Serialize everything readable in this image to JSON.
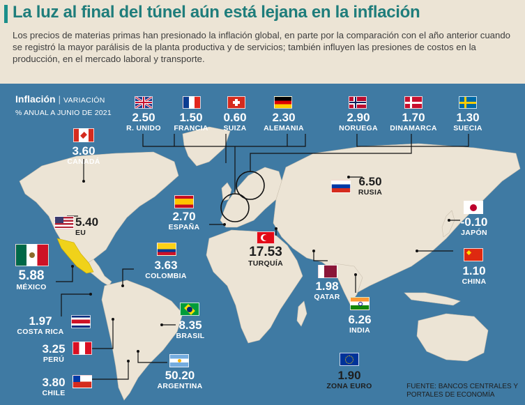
{
  "title": "La luz al final del túnel aún está lejana en la inflación",
  "intro": "Los precios de materias primas han presionado la inflación global, en parte por la comparación con el año anterior cuando se registró la mayor parálisis de la planta productiva y de servicios; también influyen las presiones de costos en la producción, en el mercado laboral y transporte.",
  "subtitle": {
    "main": "Inflación",
    "sep": "|",
    "var": "VARIACIÓN",
    "line2": "% ANUAL A JUNIO DE 2021"
  },
  "countries": {
    "uk": {
      "value": "2.50",
      "name": "R. UNIDO",
      "flag": "uk-flag-icon"
    },
    "france": {
      "value": "1.50",
      "name": "FRANCIA",
      "flag": "france-flag-icon"
    },
    "switzerland": {
      "value": "0.60",
      "name": "SUIZA",
      "flag": "switzerland-flag-icon"
    },
    "germany": {
      "value": "2.30",
      "name": "ALEMANIA",
      "flag": "germany-flag-icon"
    },
    "norway": {
      "value": "2.90",
      "name": "NORUEGA",
      "flag": "norway-flag-icon"
    },
    "denmark": {
      "value": "1.70",
      "name": "DINAMARCA",
      "flag": "denmark-flag-icon"
    },
    "sweden": {
      "value": "1.30",
      "name": "SUECIA",
      "flag": "sweden-flag-icon"
    },
    "canada": {
      "value": "3.60",
      "name": "CANADÁ",
      "flag": "canada-flag-icon"
    },
    "spain": {
      "value": "2.70",
      "name": "ESPAÑA",
      "flag": "spain-flag-icon"
    },
    "usa": {
      "value": "5.40",
      "name": "EU",
      "flag": "usa-flag-icon"
    },
    "russia": {
      "value": "6.50",
      "name": "RUSIA",
      "flag": "russia-flag-icon"
    },
    "japan": {
      "value": "-0.10",
      "name": "JAPÓN",
      "flag": "japan-flag-icon"
    },
    "turkey": {
      "value": "17.53",
      "name": "TURQUÍA",
      "flag": "turkey-flag-icon"
    },
    "mexico": {
      "value": "5.88",
      "name": "MÉXICO",
      "flag": "mexico-flag-icon"
    },
    "colombia": {
      "value": "3.63",
      "name": "COLOMBIA",
      "flag": "colombia-flag-icon"
    },
    "qatar": {
      "value": "1.98",
      "name": "QATAR",
      "flag": "qatar-flag-icon"
    },
    "china": {
      "value": "1.10",
      "name": "CHINA",
      "flag": "china-flag-icon"
    },
    "costarica": {
      "value": "1.97",
      "name": "COSTA RICA",
      "flag": "costarica-flag-icon"
    },
    "brazil": {
      "value": "8.35",
      "name": "BRASIL",
      "flag": "brazil-flag-icon"
    },
    "india": {
      "value": "6.26",
      "name": "INDIA",
      "flag": "india-flag-icon"
    },
    "peru": {
      "value": "3.25",
      "name": "PERÚ",
      "flag": "peru-flag-icon"
    },
    "argentina": {
      "value": "50.20",
      "name": "ARGENTINA",
      "flag": "argentina-flag-icon"
    },
    "eurozone": {
      "value": "1.90",
      "name": "ZONA EURO",
      "flag": "eu-flag-icon"
    },
    "chile": {
      "value": "3.80",
      "name": "CHILE",
      "flag": "chile-flag-icon"
    }
  },
  "source": {
    "line1": "FUENTE: BANCOS CENTRALES Y",
    "line2": "PORTALES DE ECONOMÍA"
  },
  "colors": {
    "title": "#1f7d7b",
    "ocean": "#3f7aa3",
    "land": "#ece4d5",
    "mexico": "#f0d21a"
  }
}
